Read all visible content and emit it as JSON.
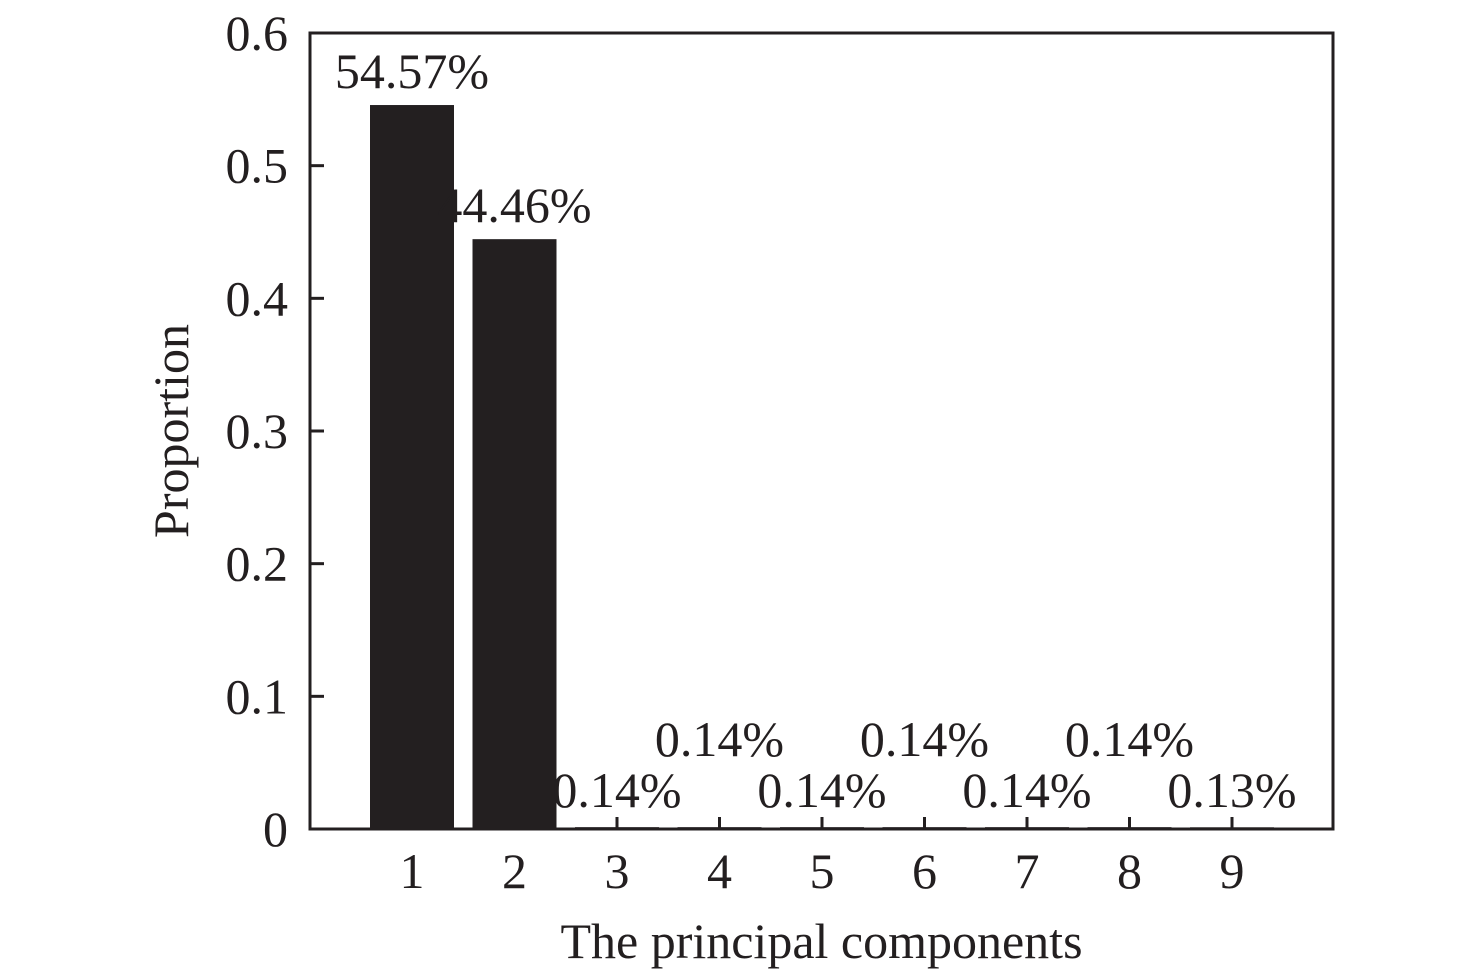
{
  "chart_data": {
    "type": "bar",
    "categories": [
      "1",
      "2",
      "3",
      "4",
      "5",
      "6",
      "7",
      "8",
      "9"
    ],
    "values": [
      0.5457,
      0.4446,
      0.0014,
      0.0014,
      0.0014,
      0.0014,
      0.0014,
      0.0014,
      0.0013
    ],
    "data_labels": [
      "54.57%",
      "44.46%",
      "0.14%",
      "0.14%",
      "0.14%",
      "0.14%",
      "0.14%",
      "0.14%",
      "0.13%"
    ],
    "xlabel": "The principal components",
    "ylabel": "Proportion",
    "ylim": [
      0,
      0.6
    ],
    "yticks": [
      0,
      0.1,
      0.2,
      0.3,
      0.4,
      0.5,
      0.6
    ],
    "ytick_labels": [
      "0",
      "0.1",
      "0.2",
      "0.3",
      "0.4",
      "0.5",
      "0.6"
    ],
    "grid": false,
    "legend": "none",
    "bar_color": "#231f20"
  }
}
